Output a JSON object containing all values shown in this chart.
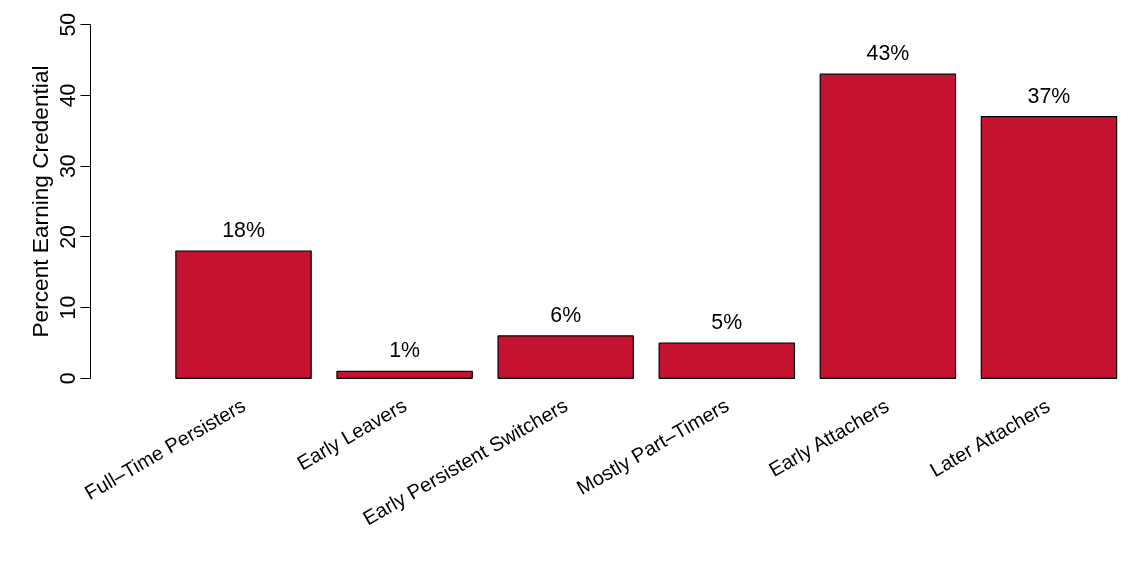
{
  "chart_data": {
    "type": "bar",
    "ylabel": "Percent Earning Credential",
    "categories": [
      "Full–Time Persisters",
      "Early Leavers",
      "Early Persistent Switchers",
      "Mostly Part–Timers",
      "Early Attachers",
      "Later Attachers"
    ],
    "values": [
      18,
      1,
      6,
      5,
      43,
      37
    ],
    "value_labels": [
      "18%",
      "1%",
      "6%",
      "5%",
      "43%",
      "37%"
    ],
    "color": "#c41230",
    "ylim": [
      0,
      50
    ],
    "yticks": [
      0,
      10,
      20,
      30,
      40,
      50
    ],
    "grid": false
  }
}
